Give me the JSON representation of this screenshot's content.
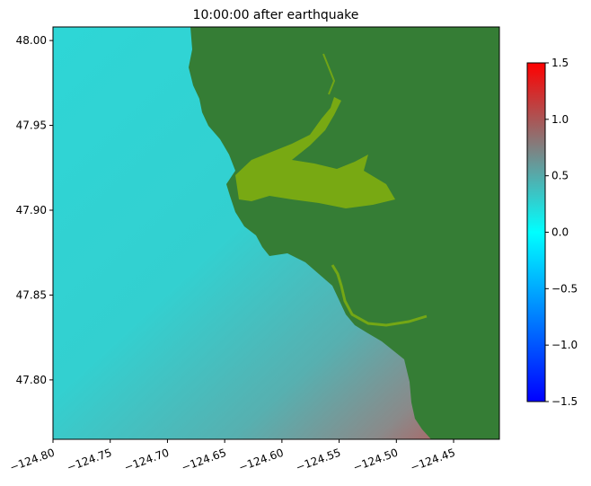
{
  "chart_data": {
    "type": "heatmap",
    "title": "10:00:00 after earthquake",
    "xlabel": "",
    "ylabel": "",
    "xlim": [
      -124.8,
      -124.41
    ],
    "ylim": [
      47.765,
      48.008
    ],
    "x_ticks": [
      -124.8,
      -124.75,
      -124.7,
      -124.65,
      -124.6,
      -124.55,
      -124.5,
      -124.45
    ],
    "x_tick_labels": [
      "−124.80",
      "−124.75",
      "−124.70",
      "−124.65",
      "−124.60",
      "−124.55",
      "−124.50",
      "−124.45"
    ],
    "y_ticks": [
      47.8,
      47.85,
      47.9,
      47.95,
      48.0
    ],
    "y_tick_labels": [
      "47.80",
      "47.85",
      "47.90",
      "47.95",
      "48.00"
    ],
    "colorbar": {
      "range": [
        -1.5,
        1.5
      ],
      "ticks": [
        -1.5,
        -1.0,
        -0.5,
        0.0,
        0.5,
        1.0,
        1.5
      ],
      "tick_labels": [
        "−1.5",
        "−1.0",
        "−0.5",
        "0.0",
        "0.5",
        "1.0",
        "1.5"
      ],
      "colors": [
        "#0000ff",
        "#00ffff",
        "#808080",
        "#ff0000"
      ]
    },
    "grid": false,
    "colors": {
      "land": "#357d35",
      "inundated_land": "#7fae0f",
      "water_deep": "#2ed6d6",
      "water_mid": "#57b0b0",
      "water_near_shore_high": "#b65a5a"
    }
  }
}
